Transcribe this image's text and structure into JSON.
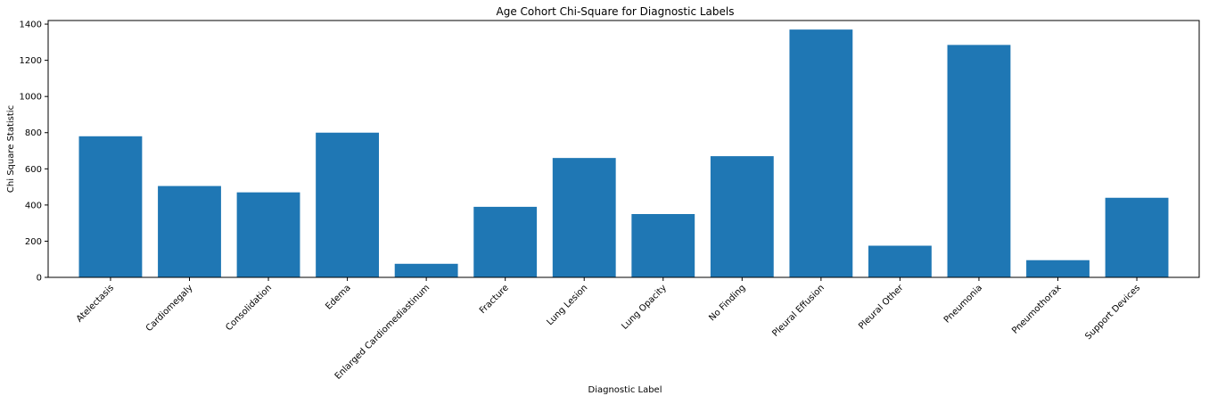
{
  "chart_data": {
    "type": "bar",
    "title": "Age Cohort Chi-Square for Diagnostic Labels",
    "xlabel": "Diagnostic Label",
    "ylabel": "Chi Square Statistic",
    "categories": [
      "Atelectasis",
      "Cardiomegaly",
      "Consolidation",
      "Edema",
      "Enlarged Cardiomediastinum",
      "Fracture",
      "Lung Lesion",
      "Lung Opacity",
      "No Finding",
      "Pleural Effusion",
      "Pleural Other",
      "Pneumonia",
      "Pneumothorax",
      "Support Devices"
    ],
    "values": [
      780,
      505,
      470,
      800,
      75,
      390,
      660,
      350,
      670,
      1370,
      175,
      1285,
      95,
      440
    ],
    "ylim": [
      0,
      1420
    ],
    "yticks": [
      0,
      200,
      400,
      600,
      800,
      1000,
      1200,
      1400
    ],
    "bar_color": "#1f77b4",
    "grid": false,
    "xtick_rotation_deg": 45
  }
}
